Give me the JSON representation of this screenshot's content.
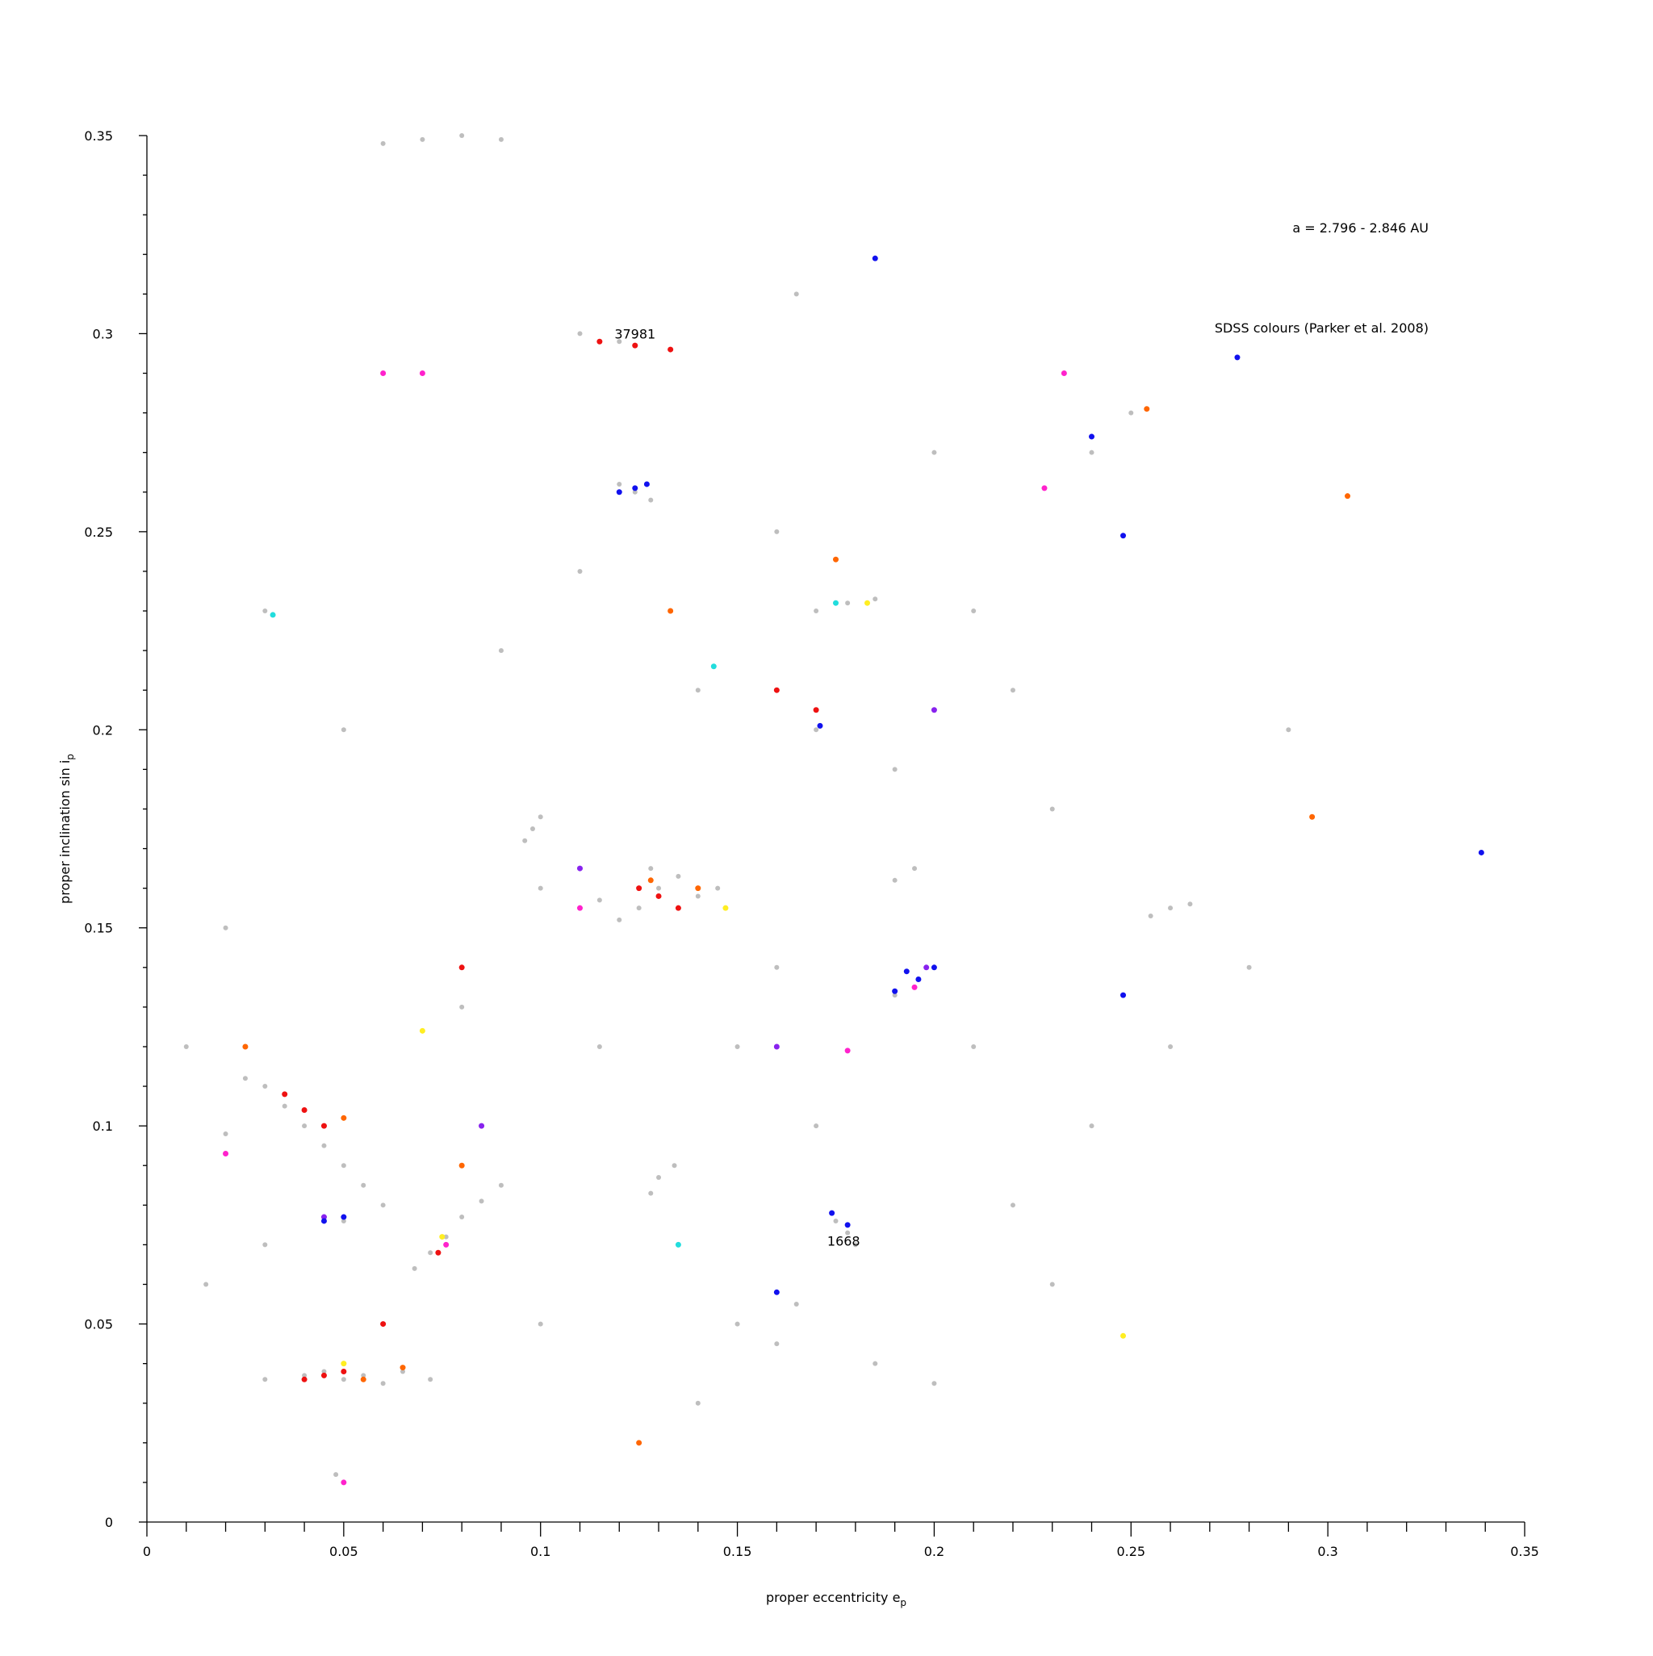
{
  "chart_data": {
    "type": "scatter",
    "x_label": {
      "text": "proper eccentricity e",
      "sub": "p"
    },
    "y_label": {
      "text": "proper inclination sin i",
      "sub": "p"
    },
    "info": [
      "a = 2.796 - 2.846 AU",
      "SDSS colours (Parker et al. 2008)"
    ],
    "annotations": [
      {
        "text": "37981",
        "x": 0.124,
        "y": 0.3
      },
      {
        "text": "1668",
        "x": 0.177,
        "y": 0.071
      }
    ],
    "xlim": [
      0,
      0.35
    ],
    "ylim": [
      0,
      0.35
    ],
    "xticks": [
      0,
      0.05,
      0.1,
      0.15,
      0.2,
      0.25,
      0.3,
      0.35
    ],
    "yticks": [
      0,
      0.05,
      0.1,
      0.15,
      0.2,
      0.25,
      0.3,
      0.35
    ],
    "xminorticks": [
      0.01,
      0.02,
      0.03,
      0.04,
      0.06,
      0.07,
      0.08,
      0.09,
      0.11,
      0.12,
      0.13,
      0.14,
      0.16,
      0.17,
      0.18,
      0.19,
      0.21,
      0.22,
      0.23,
      0.24,
      0.26,
      0.27,
      0.28,
      0.29,
      0.31,
      0.32,
      0.33,
      0.34
    ],
    "yminorticks": [
      0.01,
      0.02,
      0.03,
      0.04,
      0.06,
      0.07,
      0.08,
      0.09,
      0.11,
      0.12,
      0.13,
      0.14,
      0.16,
      0.17,
      0.18,
      0.19,
      0.21,
      0.22,
      0.23,
      0.24,
      0.26,
      0.27,
      0.28,
      0.29,
      0.31,
      0.32,
      0.33,
      0.34
    ],
    "series": [
      {
        "color": "#bebebe",
        "x": [
          0.13,
          0.125,
          0.135,
          0.14,
          0.12,
          0.128,
          0.145,
          0.115,
          0.03,
          0.035,
          0.04,
          0.045,
          0.05,
          0.025,
          0.02,
          0.055,
          0.06,
          0.04,
          0.045,
          0.05,
          0.055,
          0.06,
          0.065,
          0.03,
          0.072,
          0.072,
          0.076,
          0.08,
          0.085,
          0.09,
          0.068,
          0.13,
          0.128,
          0.134,
          0.098,
          0.096,
          0.1,
          0.124,
          0.12,
          0.128,
          0.196,
          0.19,
          0.2,
          0.178,
          0.175,
          0.18,
          0.178,
          0.17,
          0.185,
          0.048,
          0.05,
          0.07,
          0.08,
          0.09,
          0.06,
          0.195,
          0.19,
          0.26,
          0.255,
          0.265,
          0.045,
          0.05,
          0.1,
          0.15,
          0.16,
          0.17,
          0.21,
          0.22,
          0.23,
          0.24,
          0.02,
          0.01,
          0.015,
          0.09,
          0.11,
          0.16,
          0.2,
          0.25,
          0.28,
          0.11,
          0.12,
          0.06,
          0.07,
          0.15,
          0.16,
          0.165,
          0.185,
          0.2,
          0.22,
          0.24,
          0.26,
          0.1,
          0.14,
          0.05,
          0.03,
          0.115,
          0.17,
          0.21,
          0.23,
          0.29,
          0.03,
          0.08,
          0.14,
          0.165,
          0.19
        ],
        "y": [
          0.16,
          0.155,
          0.163,
          0.158,
          0.152,
          0.165,
          0.16,
          0.157,
          0.11,
          0.105,
          0.1,
          0.095,
          0.09,
          0.112,
          0.098,
          0.085,
          0.08,
          0.037,
          0.038,
          0.036,
          0.037,
          0.035,
          0.038,
          0.036,
          0.036,
          0.068,
          0.072,
          0.077,
          0.081,
          0.085,
          0.064,
          0.087,
          0.083,
          0.09,
          0.175,
          0.172,
          0.178,
          0.26,
          0.262,
          0.258,
          0.137,
          0.133,
          0.14,
          0.073,
          0.076,
          0.07,
          0.232,
          0.23,
          0.233,
          0.012,
          0.01,
          0.349,
          0.35,
          0.349,
          0.348,
          0.165,
          0.162,
          0.155,
          0.153,
          0.156,
          0.077,
          0.076,
          0.16,
          0.12,
          0.14,
          0.2,
          0.23,
          0.21,
          0.18,
          0.27,
          0.15,
          0.12,
          0.06,
          0.22,
          0.24,
          0.25,
          0.27,
          0.28,
          0.14,
          0.3,
          0.298,
          0.29,
          0.29,
          0.05,
          0.045,
          0.055,
          0.04,
          0.035,
          0.08,
          0.1,
          0.12,
          0.05,
          0.03,
          0.2,
          0.23,
          0.12,
          0.1,
          0.12,
          0.06,
          0.2,
          0.07,
          0.13,
          0.21,
          0.31,
          0.19
        ]
      },
      {
        "color": "#ee1111",
        "x": [
          0.13,
          0.125,
          0.135,
          0.045,
          0.05,
          0.04,
          0.035,
          0.04,
          0.045,
          0.074,
          0.115,
          0.124,
          0.133,
          0.06,
          0.08,
          0.16,
          0.17
        ],
        "y": [
          0.158,
          0.16,
          0.155,
          0.037,
          0.038,
          0.036,
          0.108,
          0.104,
          0.1,
          0.068,
          0.298,
          0.297,
          0.296,
          0.05,
          0.14,
          0.21,
          0.205
        ]
      },
      {
        "color": "#ff6600",
        "x": [
          0.128,
          0.14,
          0.055,
          0.065,
          0.05,
          0.08,
          0.254,
          0.305,
          0.296,
          0.133,
          0.175,
          0.125,
          0.025
        ],
        "y": [
          0.162,
          0.16,
          0.036,
          0.039,
          0.102,
          0.09,
          0.281,
          0.259,
          0.178,
          0.23,
          0.243,
          0.02,
          0.12
        ]
      },
      {
        "color": "#ffee22",
        "x": [
          0.07,
          0.147,
          0.075,
          0.05,
          0.183,
          0.248
        ],
        "y": [
          0.124,
          0.155,
          0.072,
          0.04,
          0.232,
          0.047
        ]
      },
      {
        "color": "#ff22cc",
        "x": [
          0.06,
          0.07,
          0.076,
          0.178,
          0.233,
          0.228,
          0.11,
          0.02,
          0.05,
          0.195
        ],
        "y": [
          0.29,
          0.29,
          0.07,
          0.119,
          0.29,
          0.261,
          0.155,
          0.093,
          0.01,
          0.135
        ]
      },
      {
        "color": "#8822ee",
        "x": [
          0.045,
          0.198,
          0.2,
          0.085,
          0.11,
          0.16
        ],
        "y": [
          0.077,
          0.14,
          0.205,
          0.1,
          0.165,
          0.12
        ]
      },
      {
        "color": "#1111ee",
        "x": [
          0.196,
          0.19,
          0.2,
          0.193,
          0.124,
          0.12,
          0.127,
          0.05,
          0.045,
          0.178,
          0.174,
          0.171,
          0.24,
          0.248,
          0.339,
          0.277,
          0.185,
          0.248,
          0.16
        ],
        "y": [
          0.137,
          0.134,
          0.14,
          0.139,
          0.261,
          0.26,
          0.262,
          0.077,
          0.076,
          0.075,
          0.078,
          0.201,
          0.274,
          0.249,
          0.169,
          0.294,
          0.319,
          0.133,
          0.058
        ]
      },
      {
        "color": "#22dddd",
        "x": [
          0.032,
          0.144,
          0.135,
          0.175
        ],
        "y": [
          0.229,
          0.216,
          0.07,
          0.232
        ]
      }
    ]
  }
}
